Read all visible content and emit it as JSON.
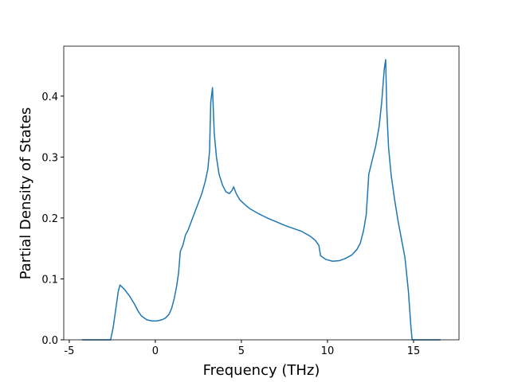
{
  "chart_data": {
    "type": "line",
    "xlabel": "Frequency (THz)",
    "ylabel": "Partial Density of States",
    "color": "#1f77b4",
    "x": [
      -4.26,
      -2.6,
      -2.45,
      -2.3,
      -2.15,
      -2.05,
      -1.8,
      -1.5,
      -1.2,
      -1.0,
      -0.8,
      -0.5,
      -0.2,
      0.1,
      0.4,
      0.6,
      0.8,
      0.95,
      1.1,
      1.25,
      1.35,
      1.45,
      1.6,
      1.75,
      1.9,
      2.1,
      2.3,
      2.5,
      2.7,
      2.9,
      3.05,
      3.15,
      3.22,
      3.32,
      3.42,
      3.55,
      3.7,
      3.9,
      4.1,
      4.3,
      4.45,
      4.55,
      4.7,
      4.9,
      5.2,
      5.5,
      6,
      6.5,
      7,
      7.5,
      8,
      8.5,
      9,
      9.3,
      9.5,
      9.6,
      9.9,
      10.3,
      10.7,
      11,
      11.4,
      11.7,
      11.9,
      12.1,
      12.25,
      12.4,
      12.6,
      12.8,
      13.0,
      13.15,
      13.3,
      13.38,
      13.45,
      13.55,
      13.7,
      13.9,
      14.1,
      14.3,
      14.5,
      14.7,
      14.85,
      14.92,
      16.57
    ],
    "values": [
      0,
      0,
      0.02,
      0.05,
      0.08,
      0.09,
      0.083,
      0.072,
      0.058,
      0.047,
      0.039,
      0.033,
      0.031,
      0.031,
      0.033,
      0.036,
      0.042,
      0.052,
      0.068,
      0.09,
      0.11,
      0.145,
      0.155,
      0.172,
      0.18,
      0.195,
      0.21,
      0.225,
      0.24,
      0.26,
      0.28,
      0.31,
      0.39,
      0.414,
      0.34,
      0.3,
      0.272,
      0.254,
      0.243,
      0.24,
      0.245,
      0.251,
      0.24,
      0.23,
      0.222,
      0.215,
      0.207,
      0.2,
      0.194,
      0.188,
      0.183,
      0.178,
      0.17,
      0.163,
      0.155,
      0.138,
      0.132,
      0.129,
      0.13,
      0.133,
      0.139,
      0.148,
      0.158,
      0.18,
      0.205,
      0.272,
      0.295,
      0.318,
      0.35,
      0.39,
      0.445,
      0.46,
      0.375,
      0.315,
      0.27,
      0.23,
      0.195,
      0.165,
      0.135,
      0.08,
      0.02,
      0,
      0
    ],
    "xlim": [
      -5.32,
      17.64
    ],
    "ylim": [
      0,
      0.482
    ],
    "xticks": [
      -5,
      0,
      5,
      10,
      15
    ],
    "yticks": [
      {
        "value": 0,
        "label": "0.0"
      },
      0.1,
      0.2,
      0.3,
      0.4
    ]
  }
}
